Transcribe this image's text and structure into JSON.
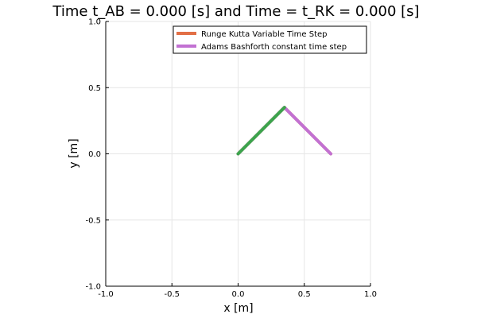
{
  "chart_data": {
    "type": "line",
    "title": "Time t_AB =  0.000 [s] and Time = t_RK =  0.000 [s]",
    "xlabel": "x [m]",
    "ylabel": "y [m]",
    "xlim": [
      -1.0,
      1.0
    ],
    "ylim": [
      -1.0,
      1.0
    ],
    "xticks": [
      "-1.0",
      "-0.5",
      "0.0",
      "0.5",
      "1.0"
    ],
    "yticks": [
      "-1.0",
      "-0.5",
      "0.0",
      "0.5",
      "1.0"
    ],
    "xtick_values": [
      -1.0,
      -0.5,
      0.0,
      0.5,
      1.0
    ],
    "ytick_values": [
      -1.0,
      -0.5,
      0.0,
      0.5,
      1.0
    ],
    "grid": true,
    "legend_position": "top-right",
    "series": [
      {
        "name": "Runge Kutta Variable Time Step",
        "color": "#e26f46",
        "x": [
          0.0,
          0.35,
          0.7
        ],
        "y": [
          0.0,
          0.35,
          0.0
        ]
      },
      {
        "name": "Adams Bashforth constant time step",
        "color": "#c271d2",
        "x": [
          0.0,
          0.35,
          0.7
        ],
        "y": [
          0.0,
          0.35,
          0.0
        ]
      }
    ],
    "overlay_segment": {
      "color": "#3da44d",
      "x": [
        0.0,
        0.35
      ],
      "y": [
        0.0,
        0.35
      ]
    }
  }
}
